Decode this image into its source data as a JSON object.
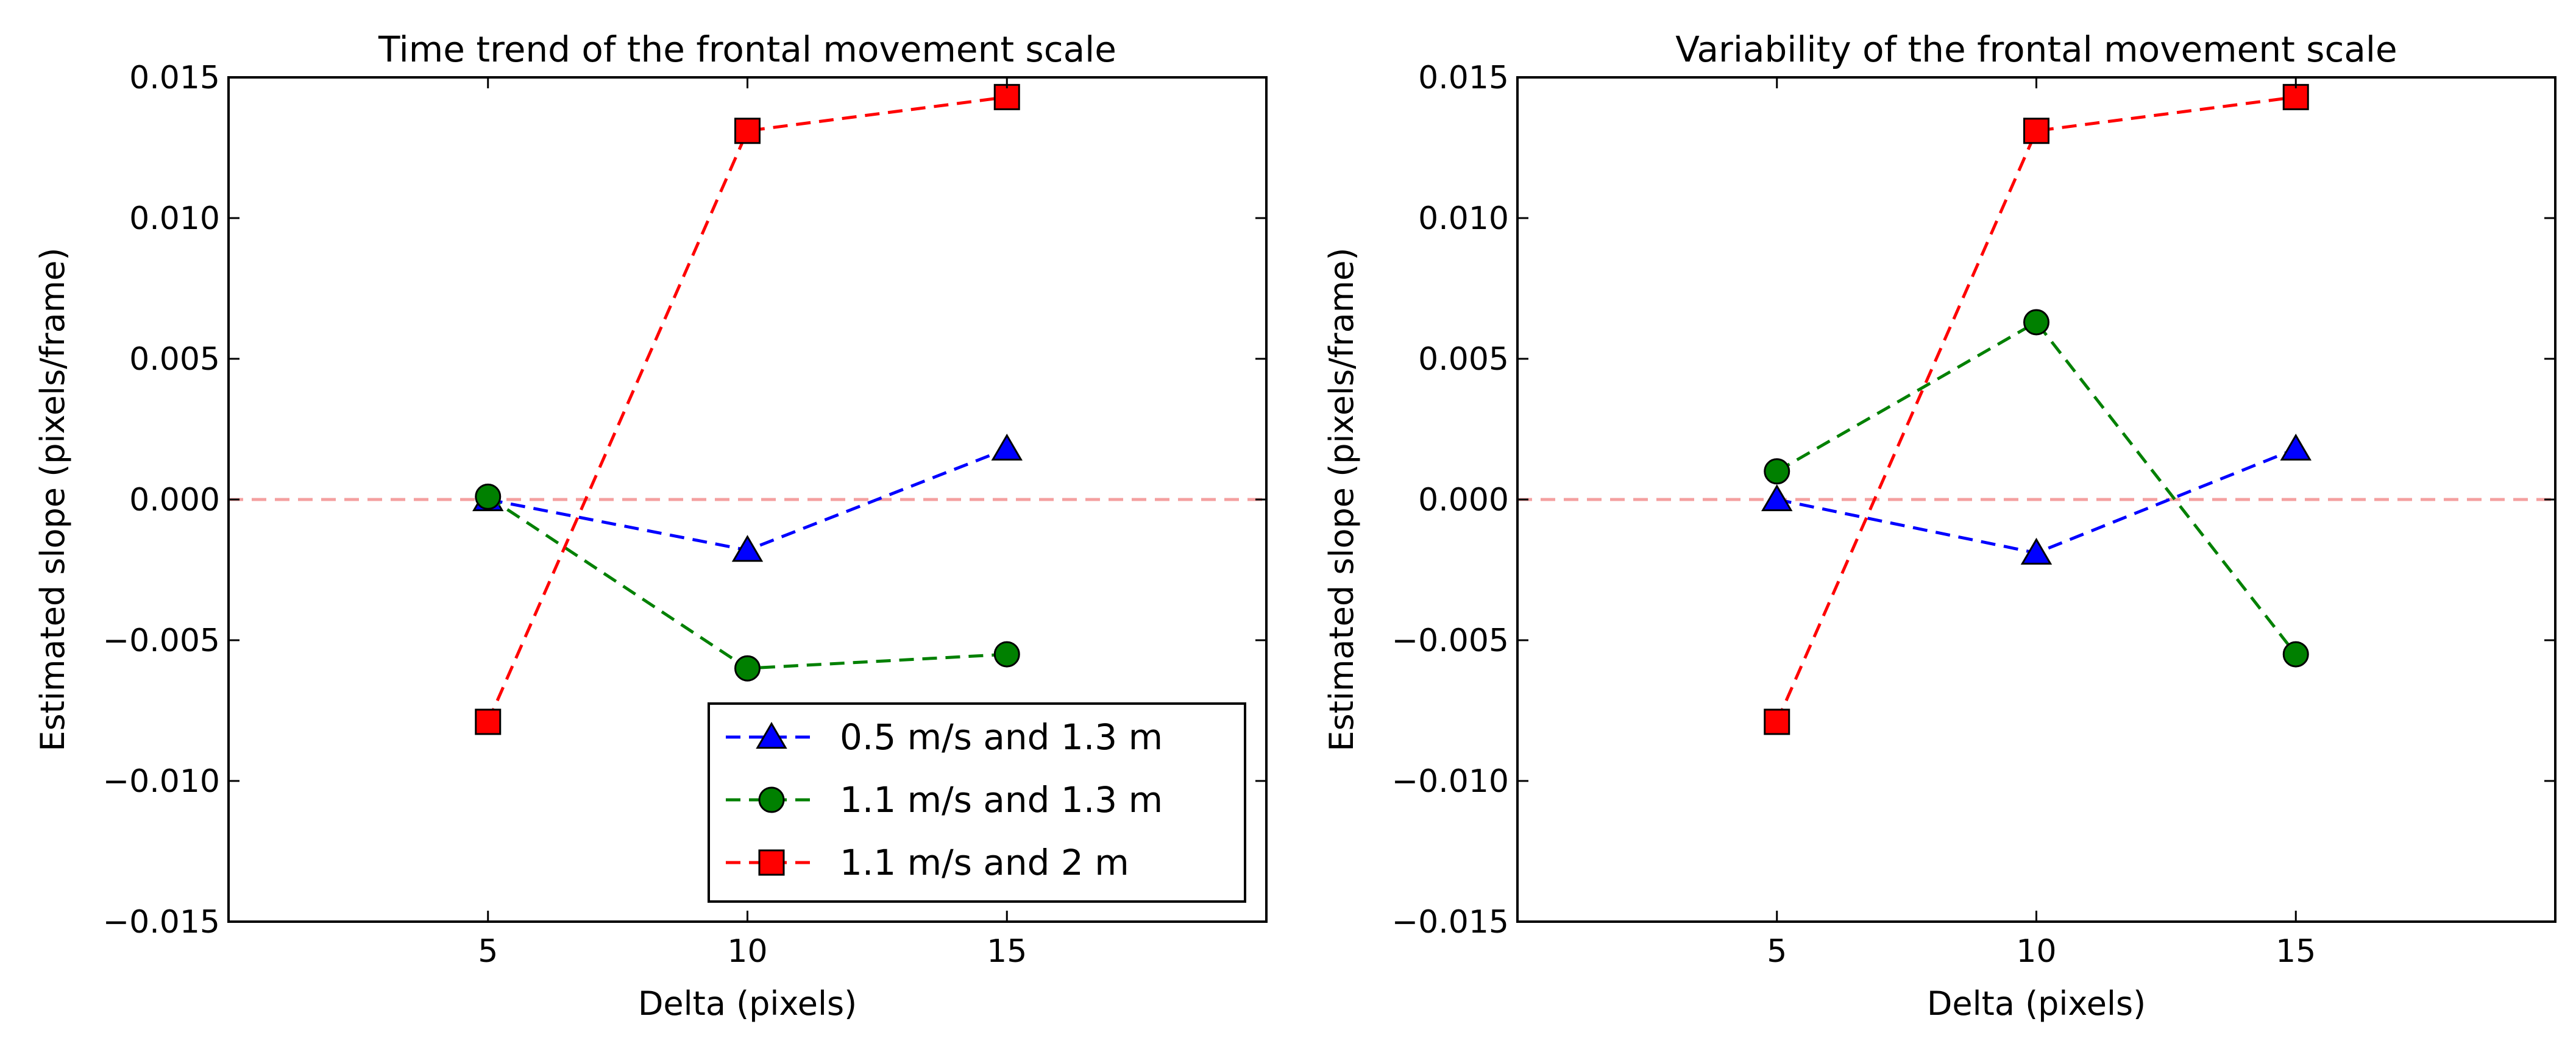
{
  "chart_data": [
    {
      "type": "line",
      "title": "Time trend of the frontal movement scale",
      "xlabel": "Delta (pixels)",
      "ylabel": "Estimated slope (pixels/frame)",
      "xlim": [
        0,
        20
      ],
      "ylim": [
        -0.015,
        0.015
      ],
      "xticks": [
        5,
        10,
        15
      ],
      "xtick_labels": [
        "5",
        "10",
        "15"
      ],
      "yticks": [
        -0.015,
        -0.01,
        -0.005,
        0,
        0.005,
        0.01,
        0.015
      ],
      "ytick_labels": [
        "−0.015",
        "−0.010",
        "−0.005",
        "0.000",
        "0.005",
        "0.010",
        "0.015"
      ],
      "reference_line": {
        "y": 0,
        "color": "#f4a0a0",
        "style": "dashed"
      },
      "legend": {
        "position": "lower-right",
        "visible": true
      },
      "x": [
        5,
        10,
        15
      ],
      "series": [
        {
          "name": "0.5 m/s and 1.3 m",
          "color": "#0000ff",
          "marker": "triangle",
          "values": [
            0.0,
            -0.0018,
            0.0018
          ]
        },
        {
          "name": "1.1 m/s and 1.3 m",
          "color": "#008000",
          "marker": "circle",
          "values": [
            0.0001,
            -0.006,
            -0.0055
          ]
        },
        {
          "name": "1.1 m/s and 2 m",
          "color": "#ff0000",
          "marker": "square",
          "values": [
            -0.0079,
            0.0131,
            0.0143
          ]
        }
      ]
    },
    {
      "type": "line",
      "title": "Variability of the frontal movement scale",
      "xlabel": "Delta (pixels)",
      "ylabel": "Estimated slope (pixels/frame)",
      "xlim": [
        0,
        20
      ],
      "ylim": [
        -0.015,
        0.015
      ],
      "xticks": [
        5,
        10,
        15
      ],
      "xtick_labels": [
        "5",
        "10",
        "15"
      ],
      "yticks": [
        -0.015,
        -0.01,
        -0.005,
        0,
        0.005,
        0.01,
        0.015
      ],
      "ytick_labels": [
        "−0.015",
        "−0.010",
        "−0.005",
        "0.000",
        "0.005",
        "0.010",
        "0.015"
      ],
      "reference_line": {
        "y": 0,
        "color": "#f4a0a0",
        "style": "dashed"
      },
      "legend": {
        "visible": false
      },
      "x": [
        5,
        10,
        15
      ],
      "series": [
        {
          "name": "0.5 m/s and 1.3 m",
          "color": "#0000ff",
          "marker": "triangle",
          "values": [
            0.0,
            -0.0019,
            0.0018
          ]
        },
        {
          "name": "1.1 m/s and 1.3 m",
          "color": "#008000",
          "marker": "circle",
          "values": [
            0.001,
            0.0063,
            -0.0055
          ]
        },
        {
          "name": "1.1 m/s and 2 m",
          "color": "#ff0000",
          "marker": "square",
          "values": [
            -0.0079,
            0.0131,
            0.0143
          ]
        }
      ]
    }
  ]
}
